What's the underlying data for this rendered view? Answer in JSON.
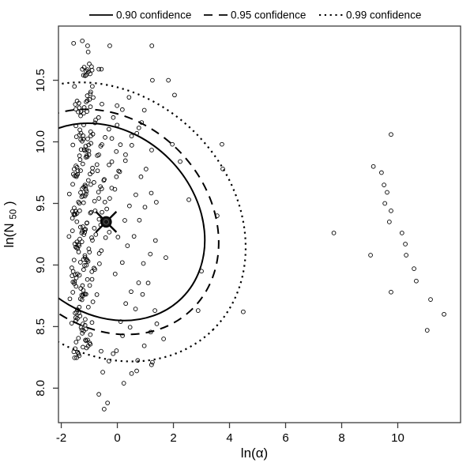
{
  "chart_data": {
    "type": "scatter",
    "title": "",
    "xlabel": "ln(α)",
    "ylabel": {
      "pre": "ln(N",
      "sub": "50",
      "post": ")"
    },
    "x_ticks": [
      -2,
      0,
      2,
      4,
      6,
      8,
      10
    ],
    "y_ticks": [
      "8.0",
      "8.5",
      "9.0",
      "9.5",
      "10.0",
      "10.5"
    ],
    "xlim": [
      -2.1,
      12.24
    ],
    "ylim": [
      7.72,
      10.94
    ],
    "grid": false,
    "legend_position": "top",
    "legend": [
      {
        "label": "0.90 confidence",
        "style": "solid"
      },
      {
        "label": "0.95 confidence",
        "style": "dashed"
      },
      {
        "label": "0.99 confidence",
        "style": "dotted"
      }
    ],
    "center_estimate": {
      "x": -0.4,
      "y": 9.35,
      "symbol": "filled-circle-with-x"
    },
    "ellipse_base": {
      "center": [
        -0.4,
        9.35
      ],
      "half_width": 3.48,
      "half_height": 0.81,
      "top_apex_shift": -0.64,
      "tilt": "negative-diagonal"
    },
    "ellipses": [
      {
        "confidence": "0.90",
        "style": "solid",
        "scale": 1.0
      },
      {
        "confidence": "0.95",
        "style": "dashed",
        "scale": 1.141
      },
      {
        "confidence": "0.99",
        "style": "dotted",
        "scale": 1.414
      }
    ],
    "scatter": {
      "marker": "open-circle",
      "singles": [
        [
          -1.56,
          10.8
        ],
        [
          -1.25,
          10.82
        ],
        [
          -1.06,
          10.78
        ],
        [
          -1.04,
          10.73
        ],
        [
          -0.27,
          10.78
        ],
        [
          1.23,
          10.78
        ],
        [
          -0.66,
          10.59
        ],
        [
          -0.57,
          10.59
        ],
        [
          -1.53,
          10.45
        ],
        [
          1.25,
          10.5
        ],
        [
          1.82,
          10.5
        ],
        [
          2.04,
          10.38
        ],
        [
          1.96,
          9.98
        ],
        [
          2.24,
          9.84
        ],
        [
          1.39,
          9.51
        ],
        [
          2.55,
          9.53
        ],
        [
          3.73,
          9.98
        ],
        [
          3.76,
          9.78
        ],
        [
          3.56,
          9.4
        ],
        [
          3.0,
          8.95
        ],
        [
          2.88,
          8.63
        ],
        [
          1.73,
          9.06
        ],
        [
          4.49,
          8.62
        ],
        [
          1.65,
          8.4
        ],
        [
          1.34,
          8.63
        ],
        [
          1.25,
          8.21
        ],
        [
          0.69,
          8.14
        ],
        [
          1.22,
          8.19
        ],
        [
          -0.58,
          8.3
        ],
        [
          -0.15,
          8.28
        ],
        [
          -0.3,
          8.22
        ],
        [
          -0.52,
          8.13
        ],
        [
          0.23,
          8.04
        ],
        [
          -0.66,
          7.95
        ],
        [
          -0.35,
          7.88
        ],
        [
          -0.47,
          7.83
        ],
        [
          9.76,
          10.06
        ],
        [
          9.13,
          9.8
        ],
        [
          9.42,
          9.75
        ],
        [
          9.51,
          9.65
        ],
        [
          9.62,
          9.59
        ],
        [
          9.54,
          9.5
        ],
        [
          9.76,
          9.44
        ],
        [
          9.7,
          9.35
        ],
        [
          7.72,
          9.26
        ],
        [
          10.15,
          9.26
        ],
        [
          10.27,
          9.17
        ],
        [
          9.03,
          9.08
        ],
        [
          10.3,
          9.08
        ],
        [
          10.58,
          8.97
        ],
        [
          10.66,
          8.87
        ],
        [
          9.76,
          8.78
        ],
        [
          11.17,
          8.72
        ],
        [
          11.65,
          8.6
        ],
        [
          11.05,
          8.47
        ]
      ],
      "streaks": [
        {
          "start": [
            -1.45,
            10.12
          ],
          "step": [
            0.12,
            0.066
          ],
          "n": 5
        },
        {
          "start": [
            -1.62,
            9.95
          ],
          "step": [
            0.13,
            0.07
          ],
          "n": 7
        },
        {
          "start": [
            -1.38,
            9.86
          ],
          "step": [
            0.115,
            0.062
          ],
          "n": 6
        },
        {
          "start": [
            -1.55,
            9.72
          ],
          "step": [
            0.125,
            0.07
          ],
          "n": 9
        },
        {
          "start": [
            -1.68,
            9.58
          ],
          "step": [
            0.12,
            0.065
          ],
          "n": 8
        },
        {
          "start": [
            -1.42,
            9.5
          ],
          "step": [
            0.14,
            0.078
          ],
          "n": 11
        },
        {
          "start": [
            -1.6,
            9.36
          ],
          "step": [
            0.12,
            0.066
          ],
          "n": 10
        },
        {
          "start": [
            -1.72,
            9.22
          ],
          "step": [
            0.125,
            0.068
          ],
          "n": 9
        },
        {
          "start": [
            -1.48,
            9.14
          ],
          "step": [
            0.13,
            0.072
          ],
          "n": 13
        },
        {
          "start": [
            -1.65,
            9.0
          ],
          "step": [
            0.12,
            0.066
          ],
          "n": 11
        },
        {
          "start": [
            -1.55,
            8.86
          ],
          "step": [
            0.125,
            0.07
          ],
          "n": 14
        },
        {
          "start": [
            -1.7,
            8.72
          ],
          "step": [
            0.12,
            0.066
          ],
          "n": 12
        },
        {
          "start": [
            -1.45,
            8.64
          ],
          "step": [
            0.13,
            0.072
          ],
          "n": 10
        },
        {
          "start": [
            -1.62,
            8.5
          ],
          "step": [
            0.12,
            0.066
          ],
          "n": 9
        },
        {
          "start": [
            -1.5,
            8.36
          ],
          "step": [
            0.125,
            0.068
          ],
          "n": 7
        },
        {
          "start": [
            -1.35,
            8.26
          ],
          "step": [
            0.12,
            0.066
          ],
          "n": 5
        },
        {
          "start": [
            -1.3,
            10.22
          ],
          "step": [
            0.12,
            0.066
          ],
          "n": 4
        },
        {
          "start": [
            -1.1,
            10.3
          ],
          "step": [
            0.12,
            0.066
          ],
          "n": 3
        },
        {
          "start": [
            -0.1,
            9.62
          ],
          "step": [
            0.2,
            0.11
          ],
          "n": 6
        },
        {
          "start": [
            0.05,
            9.25
          ],
          "step": [
            0.2,
            0.11
          ],
          "n": 7
        },
        {
          "start": [
            -0.05,
            8.9
          ],
          "step": [
            0.21,
            0.115
          ],
          "n": 7
        },
        {
          "start": [
            0.1,
            8.55
          ],
          "step": [
            0.21,
            0.11
          ],
          "n": 7
        },
        {
          "start": [
            0.0,
            8.3
          ],
          "step": [
            0.22,
            0.11
          ],
          "n": 6
        },
        {
          "start": [
            0.3,
            9.9
          ],
          "step": [
            0.22,
            0.12
          ],
          "n": 4
        },
        {
          "start": [
            0.5,
            8.1
          ],
          "step": [
            0.22,
            0.11
          ],
          "n": 5
        },
        {
          "start": [
            -0.2,
            10.05
          ],
          "step": [
            0.2,
            0.1
          ],
          "n": 4
        }
      ],
      "clumps": {
        "offsets": [
          [
            0,
            0
          ],
          [
            0.06,
            0.02
          ],
          [
            0.12,
            0.0
          ],
          [
            0.03,
            -0.045
          ],
          [
            0.09,
            -0.05
          ],
          [
            0.15,
            -0.03
          ]
        ],
        "centers": [
          [
            -1.5,
            10.3
          ],
          [
            -1.25,
            10.58
          ],
          [
            -1.05,
            10.6
          ],
          [
            -1.35,
            10.05
          ],
          [
            -1.15,
            9.92
          ],
          [
            -1.55,
            9.78
          ],
          [
            -1.25,
            9.62
          ],
          [
            -1.6,
            9.45
          ],
          [
            -1.3,
            9.3
          ],
          [
            -1.5,
            9.18
          ],
          [
            -1.2,
            9.05
          ],
          [
            -1.62,
            8.92
          ],
          [
            -1.32,
            8.8
          ],
          [
            -1.5,
            8.62
          ],
          [
            -1.28,
            8.5
          ],
          [
            -1.12,
            8.38
          ],
          [
            -1.55,
            8.3
          ]
        ]
      }
    },
    "colors": {
      "foreground": "#000000",
      "background": "#ffffff",
      "frame": "#3c3c3c"
    }
  }
}
